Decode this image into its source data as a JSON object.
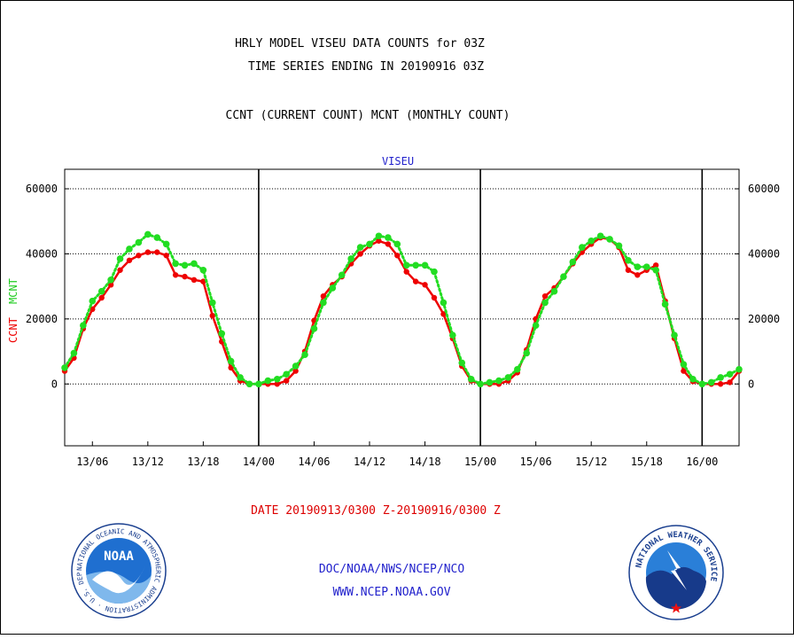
{
  "header": {
    "title_line1": "HRLY MODEL VISEU DATA COUNTS for 03Z",
    "title_line2": "TIME SERIES ENDING IN 20190916 03Z",
    "subtitle": "CCNT (CURRENT COUNT) MCNT (MONTHLY COUNT)"
  },
  "date_range": "DATE 20190913/0300 Z-20190916/0300 Z",
  "footer": {
    "line1": "DOC/NOAA/NWS/NCEP/NCO",
    "line2": "WWW.NCEP.NOAA.GOV"
  },
  "logos": {
    "noaa_text": "NOAA",
    "noaa_ring": "NATIONAL OCEANIC AND ATMOSPHERIC ADMINISTRATION · U.S. DEPARTMENT OF COMMERCE ·",
    "nws_ring": "NATIONAL WEATHER SERVICE"
  },
  "colors": {
    "ccnt": "#ee0000",
    "mcnt": "#22dd22",
    "title": "#000000",
    "date": "#dd0000",
    "footer": "#2222cc",
    "plot_label": "#2222cc"
  },
  "chart_data": {
    "type": "line",
    "title": "VISEU",
    "ylabel_parts": [
      "CCNT",
      "MCNT"
    ],
    "x_start_hour": 3,
    "ylim": [
      -19000,
      66000
    ],
    "yticks": [
      0,
      20000,
      40000,
      60000
    ],
    "ytick_labels": [
      "0",
      "20000",
      "40000",
      "60000"
    ],
    "xticks": [
      {
        "hour": 6,
        "label": "13/06"
      },
      {
        "hour": 12,
        "label": "13/12"
      },
      {
        "hour": 18,
        "label": "13/18"
      },
      {
        "hour": 24,
        "label": "14/00"
      },
      {
        "hour": 30,
        "label": "14/06"
      },
      {
        "hour": 36,
        "label": "14/12"
      },
      {
        "hour": 42,
        "label": "14/18"
      },
      {
        "hour": 48,
        "label": "15/00"
      },
      {
        "hour": 54,
        "label": "15/06"
      },
      {
        "hour": 60,
        "label": "15/12"
      },
      {
        "hour": 66,
        "label": "15/18"
      },
      {
        "hour": 72,
        "label": "16/00"
      }
    ],
    "day_dividers": [
      24,
      48,
      72
    ],
    "grid": "horizontal dotted",
    "series": [
      {
        "name": "CCNT",
        "style": "solid",
        "values": [
          4000,
          8000,
          17000,
          23000,
          26500,
          30500,
          35000,
          38000,
          39500,
          40500,
          40500,
          39500,
          33500,
          33000,
          32000,
          31500,
          21000,
          13000,
          5000,
          1000,
          0,
          0,
          0,
          0,
          1000,
          4000,
          10000,
          19500,
          27000,
          30500,
          33000,
          37000,
          40000,
          42500,
          44000,
          43000,
          39500,
          34500,
          31500,
          30500,
          26500,
          21500,
          14000,
          5500,
          1000,
          0,
          0,
          0,
          1000,
          3500,
          10500,
          20000,
          27000,
          29500,
          33000,
          37000,
          40500,
          43000,
          45000,
          44500,
          42000,
          35000,
          33500,
          35000,
          36500,
          25500,
          14000,
          4000,
          800,
          0,
          0,
          0,
          500,
          4000
        ]
      },
      {
        "name": "MCNT",
        "style": "dotted",
        "values": [
          5000,
          9500,
          18000,
          25500,
          28500,
          32000,
          38500,
          41500,
          43500,
          46000,
          45000,
          43000,
          37000,
          36500,
          37000,
          35000,
          25000,
          15500,
          7000,
          2000,
          0,
          0,
          1000,
          1500,
          3000,
          5500,
          9000,
          17000,
          25000,
          29500,
          33500,
          38500,
          42000,
          43000,
          45500,
          45000,
          43000,
          36500,
          36500,
          36500,
          34500,
          25000,
          15000,
          6500,
          1500,
          0,
          500,
          1000,
          2000,
          4500,
          9500,
          18000,
          25000,
          28500,
          33000,
          37500,
          42000,
          44000,
          45500,
          44500,
          42500,
          38000,
          36000,
          36000,
          35000,
          24500,
          15000,
          6000,
          1500,
          0,
          500,
          2000,
          3000,
          4500
        ]
      }
    ]
  }
}
